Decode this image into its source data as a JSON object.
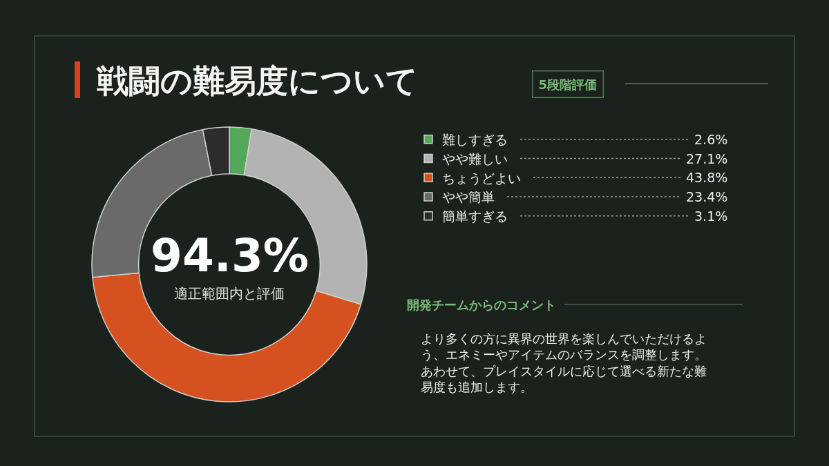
{
  "chart_data": {
    "type": "donut",
    "title": "戦闘の難易度について",
    "subtitle": "5段階評価",
    "categories": [
      "難しすぎる",
      "やや難しい",
      "ちょうどよい",
      "やや簡単",
      "簡単すぎる"
    ],
    "values": [
      2.6,
      27.1,
      43.8,
      23.4,
      3.1
    ],
    "colors": [
      "#55a85a",
      "#b3b3b3",
      "#d5511f",
      "#6a6a6a",
      "#2c2c2c"
    ],
    "value_labels": [
      "2.6%",
      "27.1%",
      "43.8%",
      "23.4%",
      "3.1%"
    ],
    "legend": "right",
    "annotations": [
      "94.3%",
      "適正範囲内と評価",
      "開発チームからのコメント",
      "より多くの方に異界の世界を楽しんでいただけるよう、エネミーやアイテムのバランスを調整します。あわせて、プレイスタイルに応じて選べる新たな難易度も追加します。"
    ]
  }
}
